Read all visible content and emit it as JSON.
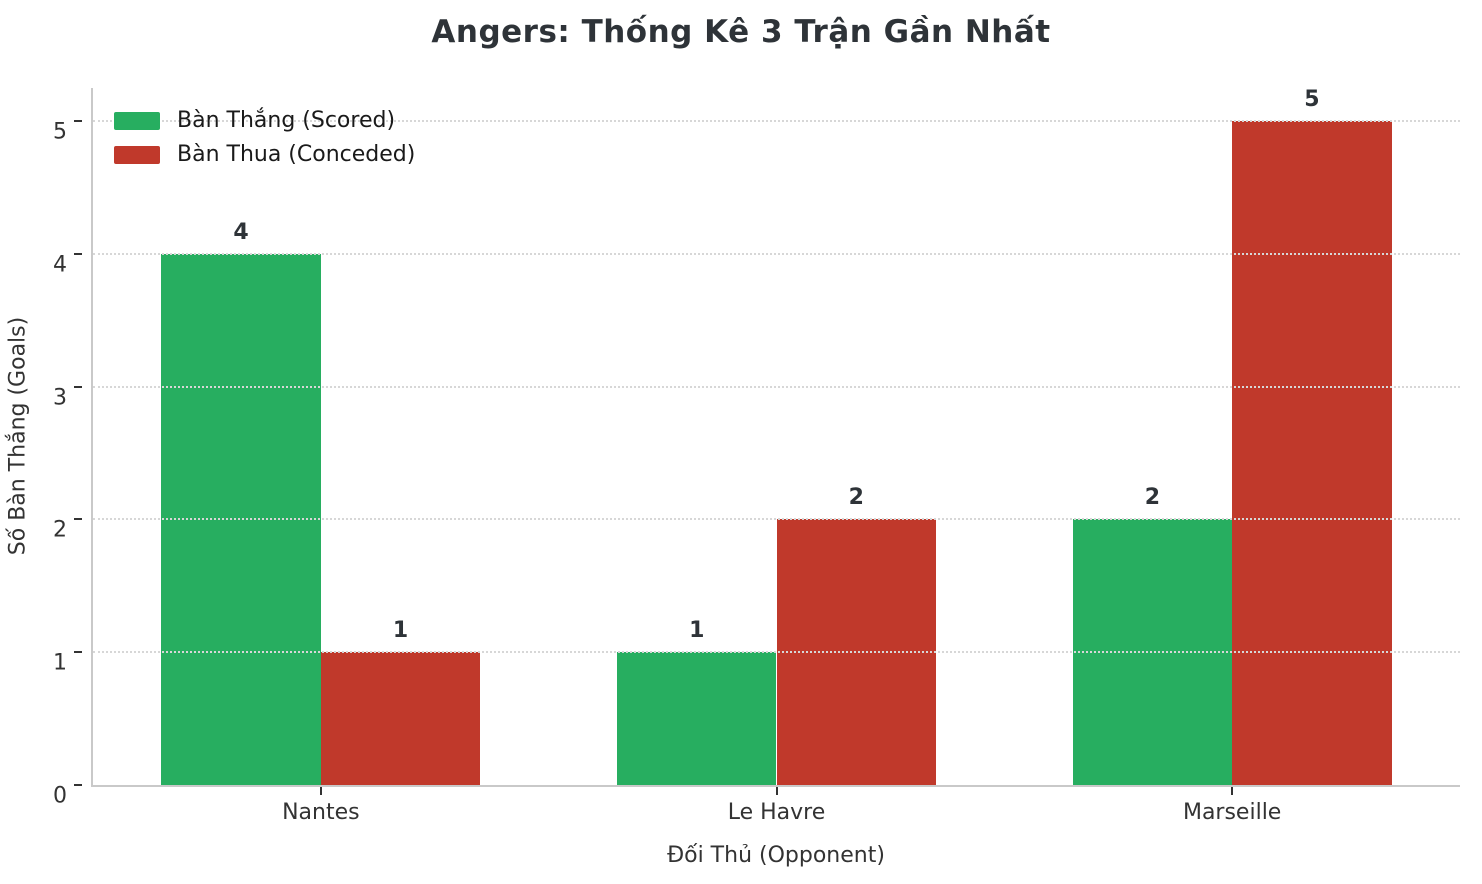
{
  "chart_data": {
    "type": "bar",
    "title": "Angers: Thống Kê 3 Trận Gần Nhất",
    "xlabel": "Đối Thủ (Opponent)",
    "ylabel": "Số Bàn Thắng (Goals)",
    "categories": [
      "Nantes",
      "Le Havre",
      "Marseille"
    ],
    "series": [
      {
        "name": "Bàn Thắng (Scored)",
        "color": "#27ae60",
        "values": [
          4,
          1,
          2
        ]
      },
      {
        "name": "Bàn Thua (Conceded)",
        "color": "#c0392b",
        "values": [
          1,
          2,
          5
        ]
      }
    ],
    "bar_value_labels": {
      "scored": [
        "4",
        "1",
        "2"
      ],
      "conceded": [
        "1",
        "2",
        "5"
      ]
    },
    "yticks": [
      "0",
      "1",
      "2",
      "3",
      "4",
      "5"
    ],
    "ylim": [
      0,
      5.25
    ],
    "grid": "horizontal dotted, drawn over bars",
    "legend_position": "upper left",
    "colors": {
      "scored_green": "#27ae60",
      "conceded_red": "#c0392b",
      "grid_gray": "#d7d7d7",
      "spine_gray": "#c9c9c9",
      "text_dark": "#333333",
      "background": "#ffffff"
    }
  }
}
